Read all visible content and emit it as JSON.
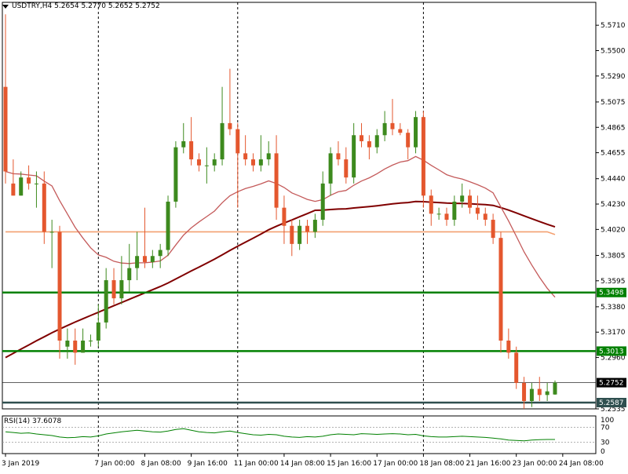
{
  "header": {
    "symbol": "USDTRY,H4",
    "open": "5.2654",
    "high": "5.2770",
    "low": "5.2652",
    "close": "5.2752"
  },
  "rsi": {
    "label": "RSI(14)",
    "value": "37.6078",
    "levels": [
      "70",
      "30"
    ],
    "level_values": [
      70,
      30
    ],
    "axis_max_label": "100",
    "axis_min_label": "0"
  },
  "price_axis": {
    "ticks": [
      "5.5710",
      "5.5500",
      "5.5290",
      "5.5075",
      "5.4865",
      "5.4655",
      "5.4440",
      "5.4230",
      "5.4020",
      "5.3805",
      "5.3595",
      "5.3380",
      "5.3170",
      "5.2960",
      "5.2535"
    ],
    "tick_values": [
      5.571,
      5.55,
      5.529,
      5.5075,
      5.4865,
      5.4655,
      5.444,
      5.423,
      5.402,
      5.3805,
      5.3595,
      5.338,
      5.317,
      5.296,
      5.2535
    ]
  },
  "time_axis": {
    "labels": [
      "3 Jan 2019",
      "7 Jan 00:00",
      "8 Jan 08:00",
      "9 Jan 16:00",
      "11 Jan 00:00",
      "14 Jan 08:00",
      "15 Jan 16:00",
      "17 Jan 00:00",
      "18 Jan 08:00",
      "21 Jan 16:00",
      "23 Jan 00:00",
      "24 Jan 08:00"
    ]
  },
  "levels": [
    {
      "label": "5.3498",
      "value": 5.3498,
      "color": "#008000"
    },
    {
      "label": "5.3013",
      "value": 5.3013,
      "color": "#008000"
    },
    {
      "label": "5.2752",
      "value": 5.2752,
      "color": "#000000",
      "style": "current"
    },
    {
      "label": "5.2587",
      "value": 5.2587,
      "color": "#2f4f4f"
    }
  ],
  "colors": {
    "bull": "#3d8a1e",
    "bear": "#e4572e",
    "ma_fast": "#c45a5a",
    "ma_mid": "#f4a070",
    "ma_slow": "#800000",
    "rsi_line": "#008000",
    "support": "#008000"
  },
  "chart_data": {
    "type": "candlestick",
    "timeframe": "H4",
    "symbol": "USDTRY",
    "ylim": [
      5.2535,
      5.5815
    ],
    "x_tick_candle_index": [
      0,
      12,
      18,
      24,
      30,
      36,
      42,
      48,
      54,
      60,
      66,
      72
    ],
    "vertical_separator_candle_index": [
      12,
      30,
      54
    ],
    "candles": [
      {
        "o": 5.52,
        "h": 5.58,
        "l": 5.44,
        "c": 5.45
      },
      {
        "o": 5.44,
        "h": 5.46,
        "l": 5.43,
        "c": 5.43
      },
      {
        "o": 5.43,
        "h": 5.45,
        "l": 5.43,
        "c": 5.445
      },
      {
        "o": 5.445,
        "h": 5.455,
        "l": 5.435,
        "c": 5.44
      },
      {
        "o": 5.44,
        "h": 5.45,
        "l": 5.42,
        "c": 5.44
      },
      {
        "o": 5.44,
        "h": 5.45,
        "l": 5.39,
        "c": 5.4
      },
      {
        "o": 5.4,
        "h": 5.41,
        "l": 5.37,
        "c": 5.4
      },
      {
        "o": 5.4,
        "h": 5.405,
        "l": 5.295,
        "c": 5.31
      },
      {
        "o": 5.305,
        "h": 5.32,
        "l": 5.295,
        "c": 5.31
      },
      {
        "o": 5.31,
        "h": 5.32,
        "l": 5.29,
        "c": 5.3
      },
      {
        "o": 5.3,
        "h": 5.32,
        "l": 5.3,
        "c": 5.31
      },
      {
        "o": 5.31,
        "h": 5.315,
        "l": 5.305,
        "c": 5.31
      },
      {
        "o": 5.31,
        "h": 5.34,
        "l": 5.305,
        "c": 5.325
      },
      {
        "o": 5.325,
        "h": 5.37,
        "l": 5.32,
        "c": 5.36
      },
      {
        "o": 5.36,
        "h": 5.37,
        "l": 5.34,
        "c": 5.345
      },
      {
        "o": 5.345,
        "h": 5.38,
        "l": 5.34,
        "c": 5.36
      },
      {
        "o": 5.36,
        "h": 5.39,
        "l": 5.35,
        "c": 5.37
      },
      {
        "o": 5.37,
        "h": 5.4,
        "l": 5.36,
        "c": 5.38
      },
      {
        "o": 5.38,
        "h": 5.42,
        "l": 5.37,
        "c": 5.375
      },
      {
        "o": 5.375,
        "h": 5.385,
        "l": 5.37,
        "c": 5.38
      },
      {
        "o": 5.38,
        "h": 5.39,
        "l": 5.37,
        "c": 5.385
      },
      {
        "o": 5.385,
        "h": 5.43,
        "l": 5.38,
        "c": 5.425
      },
      {
        "o": 5.425,
        "h": 5.475,
        "l": 5.42,
        "c": 5.47
      },
      {
        "o": 5.47,
        "h": 5.49,
        "l": 5.465,
        "c": 5.475
      },
      {
        "o": 5.475,
        "h": 5.495,
        "l": 5.455,
        "c": 5.46
      },
      {
        "o": 5.46,
        "h": 5.465,
        "l": 5.45,
        "c": 5.455
      },
      {
        "o": 5.455,
        "h": 5.47,
        "l": 5.44,
        "c": 5.455
      },
      {
        "o": 5.455,
        "h": 5.465,
        "l": 5.45,
        "c": 5.46
      },
      {
        "o": 5.46,
        "h": 5.52,
        "l": 5.455,
        "c": 5.49
      },
      {
        "o": 5.49,
        "h": 5.535,
        "l": 5.48,
        "c": 5.485
      },
      {
        "o": 5.485,
        "h": 5.49,
        "l": 5.42,
        "c": 5.465
      },
      {
        "o": 5.465,
        "h": 5.48,
        "l": 5.455,
        "c": 5.46
      },
      {
        "o": 5.46,
        "h": 5.465,
        "l": 5.45,
        "c": 5.455
      },
      {
        "o": 5.455,
        "h": 5.48,
        "l": 5.45,
        "c": 5.46
      },
      {
        "o": 5.46,
        "h": 5.475,
        "l": 5.455,
        "c": 5.465
      },
      {
        "o": 5.465,
        "h": 5.48,
        "l": 5.41,
        "c": 5.42
      },
      {
        "o": 5.42,
        "h": 5.43,
        "l": 5.39,
        "c": 5.405
      },
      {
        "o": 5.405,
        "h": 5.41,
        "l": 5.38,
        "c": 5.39
      },
      {
        "o": 5.39,
        "h": 5.41,
        "l": 5.385,
        "c": 5.405
      },
      {
        "o": 5.405,
        "h": 5.41,
        "l": 5.39,
        "c": 5.4
      },
      {
        "o": 5.4,
        "h": 5.415,
        "l": 5.395,
        "c": 5.41
      },
      {
        "o": 5.41,
        "h": 5.45,
        "l": 5.405,
        "c": 5.44
      },
      {
        "o": 5.44,
        "h": 5.47,
        "l": 5.43,
        "c": 5.465
      },
      {
        "o": 5.465,
        "h": 5.475,
        "l": 5.455,
        "c": 5.46
      },
      {
        "o": 5.46,
        "h": 5.47,
        "l": 5.44,
        "c": 5.445
      },
      {
        "o": 5.445,
        "h": 5.49,
        "l": 5.44,
        "c": 5.48
      },
      {
        "o": 5.48,
        "h": 5.49,
        "l": 5.47,
        "c": 5.475
      },
      {
        "o": 5.475,
        "h": 5.48,
        "l": 5.46,
        "c": 5.47
      },
      {
        "o": 5.47,
        "h": 5.485,
        "l": 5.465,
        "c": 5.48
      },
      {
        "o": 5.48,
        "h": 5.5,
        "l": 5.475,
        "c": 5.49
      },
      {
        "o": 5.49,
        "h": 5.51,
        "l": 5.48,
        "c": 5.485
      },
      {
        "o": 5.485,
        "h": 5.49,
        "l": 5.48,
        "c": 5.482
      },
      {
        "o": 5.482,
        "h": 5.485,
        "l": 5.46,
        "c": 5.47
      },
      {
        "o": 5.47,
        "h": 5.5,
        "l": 5.465,
        "c": 5.495
      },
      {
        "o": 5.495,
        "h": 5.5,
        "l": 5.42,
        "c": 5.43
      },
      {
        "o": 5.43,
        "h": 5.435,
        "l": 5.405,
        "c": 5.415
      },
      {
        "o": 5.415,
        "h": 5.42,
        "l": 5.41,
        "c": 5.415
      },
      {
        "o": 5.415,
        "h": 5.42,
        "l": 5.405,
        "c": 5.41
      },
      {
        "o": 5.41,
        "h": 5.43,
        "l": 5.405,
        "c": 5.425
      },
      {
        "o": 5.425,
        "h": 5.44,
        "l": 5.42,
        "c": 5.43
      },
      {
        "o": 5.43,
        "h": 5.435,
        "l": 5.415,
        "c": 5.42
      },
      {
        "o": 5.42,
        "h": 5.43,
        "l": 5.41,
        "c": 5.415
      },
      {
        "o": 5.415,
        "h": 5.42,
        "l": 5.405,
        "c": 5.41
      },
      {
        "o": 5.41,
        "h": 5.415,
        "l": 5.39,
        "c": 5.395
      },
      {
        "o": 5.395,
        "h": 5.4,
        "l": 5.3,
        "c": 5.31
      },
      {
        "o": 5.31,
        "h": 5.32,
        "l": 5.295,
        "c": 5.3
      },
      {
        "o": 5.3,
        "h": 5.305,
        "l": 5.27,
        "c": 5.275
      },
      {
        "o": 5.275,
        "h": 5.28,
        "l": 5.2535,
        "c": 5.26
      },
      {
        "o": 5.26,
        "h": 5.275,
        "l": 5.255,
        "c": 5.27
      },
      {
        "o": 5.27,
        "h": 5.28,
        "l": 5.26,
        "c": 5.265
      },
      {
        "o": 5.265,
        "h": 5.275,
        "l": 5.26,
        "c": 5.268
      },
      {
        "o": 5.2654,
        "h": 5.277,
        "l": 5.2652,
        "c": 5.2752
      }
    ],
    "rsi_values": [
      58,
      56,
      54,
      55,
      52,
      50,
      48,
      44,
      42,
      43,
      45,
      44,
      47,
      52,
      55,
      58,
      60,
      62,
      60,
      58,
      57,
      60,
      64,
      66,
      62,
      58,
      56,
      55,
      58,
      60,
      56,
      53,
      50,
      49,
      51,
      50,
      46,
      44,
      43,
      45,
      44,
      46,
      50,
      52,
      51,
      50,
      53,
      52,
      51,
      52,
      53,
      52,
      50,
      51,
      47,
      45,
      44,
      44,
      45,
      46,
      45,
      44,
      43,
      41,
      39,
      36,
      35,
      34,
      36,
      37,
      37.6,
      37.6
    ]
  }
}
